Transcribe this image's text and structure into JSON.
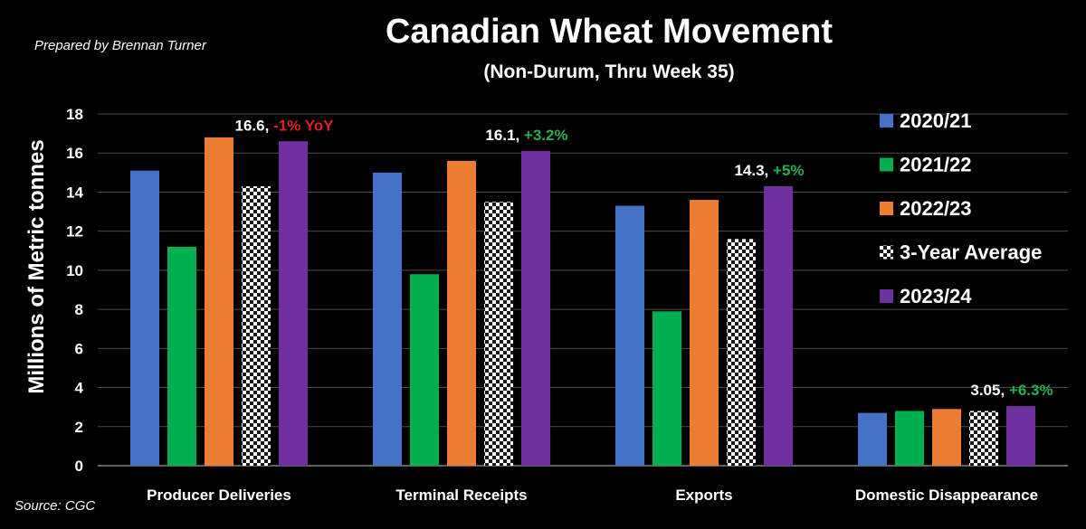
{
  "header": {
    "prepared_by": "Prepared by Brennan Turner",
    "source": "Source: CGC"
  },
  "chart_data": {
    "type": "bar",
    "title": "Canadian Wheat Movement",
    "subtitle": "(Non-Durum, Thru Week 35)",
    "xlabel": "",
    "ylabel": "Millions of Metric tonnes",
    "ylim": [
      0,
      18
    ],
    "yticks": [
      0,
      2,
      4,
      6,
      8,
      10,
      12,
      14,
      16,
      18
    ],
    "grid": true,
    "legend_position": "right",
    "categories": [
      "Producer Deliveries",
      "Terminal Receipts",
      "Exports",
      "Domestic Disappearance"
    ],
    "series": [
      {
        "name": "2020/21",
        "color": "#4472C4",
        "pattern": "solid",
        "values": [
          15.1,
          15.0,
          13.3,
          2.7
        ]
      },
      {
        "name": "2021/22",
        "color": "#00B050",
        "pattern": "solid",
        "values": [
          11.2,
          9.8,
          7.9,
          2.8
        ]
      },
      {
        "name": "2022/23",
        "color": "#ED7D31",
        "pattern": "solid",
        "values": [
          16.8,
          15.6,
          13.6,
          2.9
        ]
      },
      {
        "name": "3-Year Average",
        "color": "#FFFFFF",
        "pattern": "checker",
        "values": [
          14.3,
          13.5,
          11.6,
          2.8
        ]
      },
      {
        "name": "2023/24",
        "color": "#7030A0",
        "pattern": "solid",
        "values": [
          16.6,
          16.1,
          14.3,
          3.05
        ]
      }
    ],
    "annotations": [
      {
        "category": "Producer Deliveries",
        "value_text": "16.6, ",
        "change_text": "-1% YoY",
        "change_color": "#E02020"
      },
      {
        "category": "Terminal Receipts",
        "value_text": "16.1, ",
        "change_text": "+3.2%",
        "change_color": "#22B14C"
      },
      {
        "category": "Exports",
        "value_text": "14.3, ",
        "change_text": "+5%",
        "change_color": "#22B14C"
      },
      {
        "category": "Domestic Disappearance",
        "value_text": "3.05, ",
        "change_text": "+6.3%",
        "change_color": "#22B14C"
      }
    ]
  }
}
